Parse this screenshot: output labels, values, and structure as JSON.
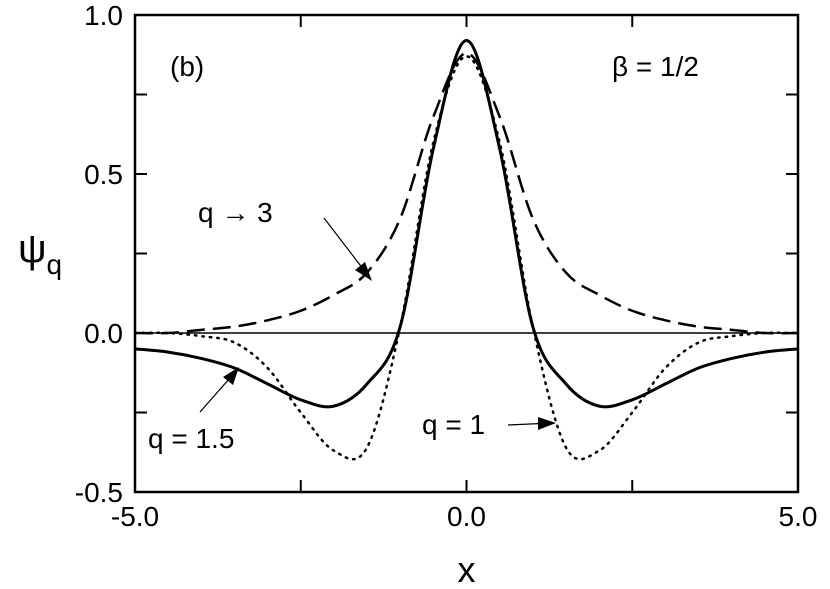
{
  "chart_data": {
    "type": "line",
    "panel_label": "(b)",
    "parameter_label": "β = 1/2",
    "xlabel": "x",
    "ylabel_main": "ψ",
    "ylabel_sub": "q",
    "xlim": [
      -5.0,
      5.0
    ],
    "ylim": [
      -0.5,
      1.0
    ],
    "x_ticks": [
      -5.0,
      -2.5,
      0.0,
      2.5,
      5.0
    ],
    "x_tick_labels": [
      "-5.0",
      "",
      "0.0",
      "",
      "5.0"
    ],
    "y_ticks": [
      -0.5,
      -0.25,
      0.0,
      0.25,
      0.5,
      0.75,
      1.0
    ],
    "y_tick_labels": [
      "-0.5",
      "",
      "0.0",
      "",
      "0.5",
      "",
      "1.0"
    ],
    "grid": false,
    "reference_line_y": 0.0,
    "series": [
      {
        "label": "q → 3",
        "style": "dashed",
        "points": [
          [
            -5.0,
            0.0
          ],
          [
            -4.5,
            0.0
          ],
          [
            -4.0,
            0.01
          ],
          [
            -3.5,
            0.02
          ],
          [
            -3.0,
            0.04
          ],
          [
            -2.5,
            0.07
          ],
          [
            -2.0,
            0.12
          ],
          [
            -1.5,
            0.19
          ],
          [
            -1.0,
            0.36
          ],
          [
            -0.5,
            0.68
          ],
          [
            0.0,
            0.88
          ],
          [
            0.5,
            0.68
          ],
          [
            1.0,
            0.36
          ],
          [
            1.5,
            0.19
          ],
          [
            2.0,
            0.12
          ],
          [
            2.5,
            0.07
          ],
          [
            3.0,
            0.04
          ],
          [
            3.5,
            0.02
          ],
          [
            4.0,
            0.01
          ],
          [
            4.5,
            0.0
          ],
          [
            5.0,
            0.0
          ]
        ]
      },
      {
        "label": "q = 1.5",
        "style": "solid",
        "points": [
          [
            -5.0,
            -0.05
          ],
          [
            -4.5,
            -0.06
          ],
          [
            -4.0,
            -0.08
          ],
          [
            -3.5,
            -0.11
          ],
          [
            -3.0,
            -0.16
          ],
          [
            -2.5,
            -0.21
          ],
          [
            -2.0,
            -0.23
          ],
          [
            -1.5,
            -0.16
          ],
          [
            -1.0,
            0.02
          ],
          [
            -0.5,
            0.58
          ],
          [
            0.0,
            0.92
          ],
          [
            0.5,
            0.58
          ],
          [
            1.0,
            0.02
          ],
          [
            1.5,
            -0.16
          ],
          [
            2.0,
            -0.23
          ],
          [
            2.5,
            -0.21
          ],
          [
            3.0,
            -0.16
          ],
          [
            3.5,
            -0.11
          ],
          [
            4.0,
            -0.08
          ],
          [
            4.5,
            -0.06
          ],
          [
            5.0,
            -0.05
          ]
        ]
      },
      {
        "label": "q = 1",
        "style": "dotted",
        "points": [
          [
            -5.0,
            0.0
          ],
          [
            -4.5,
            0.0
          ],
          [
            -4.0,
            -0.01
          ],
          [
            -3.5,
            -0.03
          ],
          [
            -3.0,
            -0.11
          ],
          [
            -2.5,
            -0.25
          ],
          [
            -2.0,
            -0.37
          ],
          [
            -1.5,
            -0.36
          ],
          [
            -1.0,
            0.02
          ],
          [
            -0.5,
            0.6
          ],
          [
            0.0,
            0.87
          ],
          [
            0.5,
            0.6
          ],
          [
            1.0,
            0.02
          ],
          [
            1.5,
            -0.36
          ],
          [
            2.0,
            -0.37
          ],
          [
            2.5,
            -0.25
          ],
          [
            3.0,
            -0.11
          ],
          [
            3.5,
            -0.03
          ],
          [
            4.0,
            -0.01
          ],
          [
            4.5,
            0.0
          ],
          [
            5.0,
            0.0
          ]
        ]
      }
    ]
  }
}
